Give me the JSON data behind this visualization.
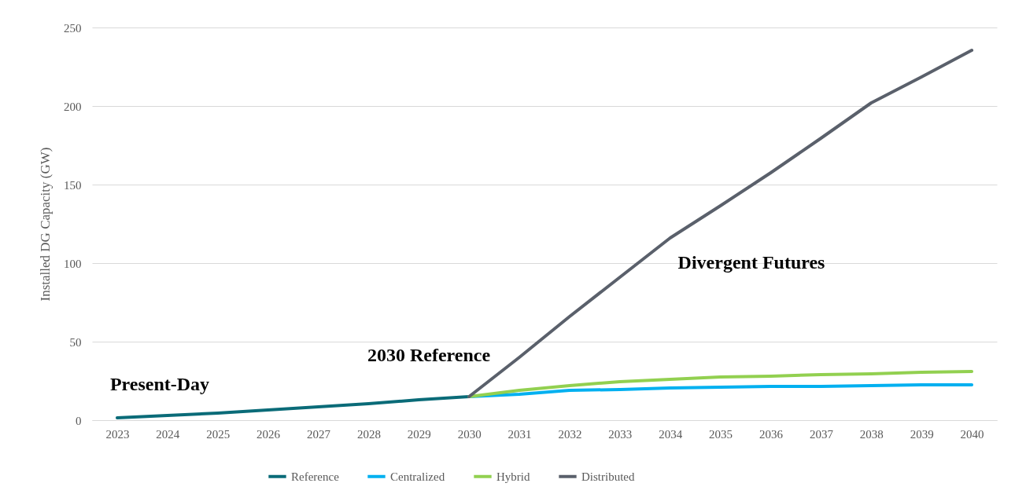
{
  "chart_data": {
    "type": "line",
    "ylabel": "Installed DG Capacity (GW)",
    "categories": [
      "2023",
      "2024",
      "2025",
      "2026",
      "2027",
      "2028",
      "2029",
      "2030",
      "2031",
      "2032",
      "2033",
      "2034",
      "2035",
      "2036",
      "2037",
      "2038",
      "2039",
      "2040"
    ],
    "series": [
      {
        "name": "Reference",
        "color": "#0a6b78",
        "values": [
          1.5,
          3,
          4.5,
          6.5,
          8.5,
          10.5,
          13,
          15,
          null,
          null,
          null,
          null,
          null,
          null,
          null,
          null,
          null,
          null
        ]
      },
      {
        "name": "Centralized",
        "color": "#00b0f0",
        "values": [
          null,
          null,
          null,
          null,
          null,
          null,
          null,
          15,
          16.5,
          19,
          19.5,
          20.5,
          21,
          21.5,
          21.5,
          22,
          22.5,
          22.5
        ]
      },
      {
        "name": "Hybrid",
        "color": "#92d050",
        "values": [
          null,
          null,
          null,
          null,
          null,
          null,
          null,
          15,
          19,
          22,
          24.5,
          26,
          27.5,
          28,
          29,
          29.5,
          30.5,
          31
        ]
      },
      {
        "name": "Distributed",
        "color": "#5a606b",
        "values": [
          null,
          null,
          null,
          null,
          null,
          null,
          null,
          15,
          40,
          66,
          91,
          116,
          136.5,
          157.5,
          179.5,
          202,
          218.5,
          235.5
        ]
      }
    ],
    "annotations": [
      "Present-Day",
      "2030 Reference",
      "Divergent Futures"
    ],
    "ylim": [
      0,
      250
    ],
    "yticks": [
      0,
      50,
      100,
      150,
      200,
      250
    ],
    "grid": "y",
    "legend": "bottom",
    "line_style": "solid"
  }
}
